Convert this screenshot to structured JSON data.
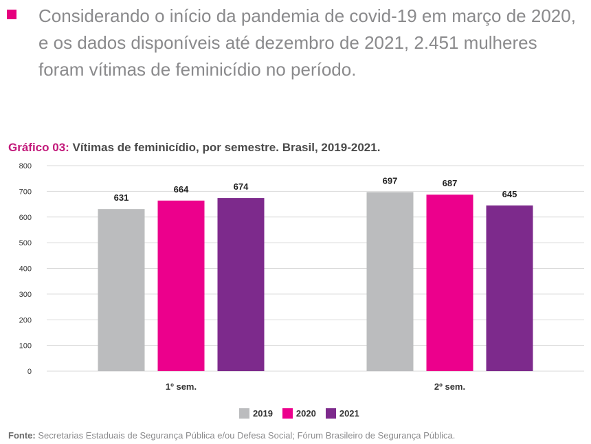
{
  "intro": {
    "text": "Considerando o início da pandemia de covid-19 em março de 2020, e os dados disponíveis até dezembro de 2021, 2.451 mulheres foram vítimas de feminicídio no período.",
    "bullet_color": "#e6007e"
  },
  "figure": {
    "label": "Gráfico 03:",
    "title": "Vítimas de feminicídio, por semestre. Brasil, 2019-2021."
  },
  "chart_data": {
    "type": "bar",
    "categories": [
      "1º sem.",
      "2º sem."
    ],
    "series": [
      {
        "name": "2019",
        "color": "#bbbcbe",
        "values": [
          631,
          697
        ]
      },
      {
        "name": "2020",
        "color": "#ec008c",
        "values": [
          664,
          687
        ]
      },
      {
        "name": "2021",
        "color": "#7d2a8c",
        "values": [
          674,
          645
        ]
      }
    ],
    "ylim": [
      0,
      800
    ],
    "yticks": [
      0,
      100,
      200,
      300,
      400,
      500,
      600,
      700,
      800
    ],
    "grid": true,
    "data_labels": true,
    "legend_position": "bottom-center"
  },
  "source": {
    "label": "Fonte:",
    "text": "Secretarias Estaduais de Segurança Pública e/ou Defesa Social; Fórum Brasileiro de Segurança Pública."
  }
}
